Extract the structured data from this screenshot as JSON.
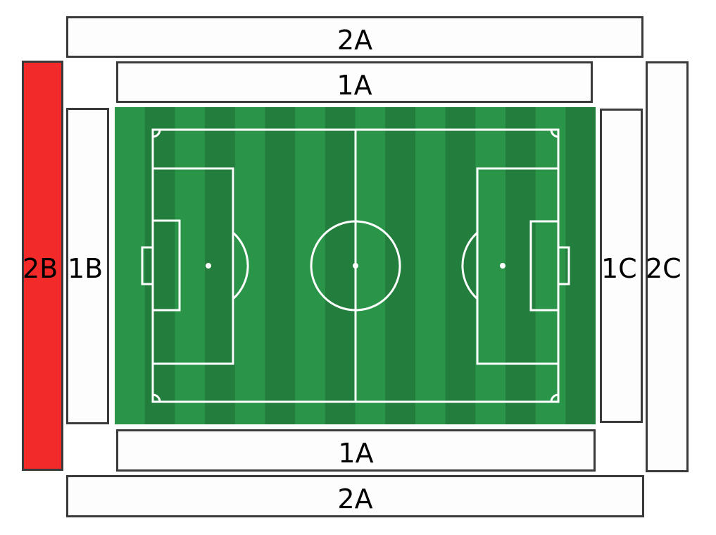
{
  "colors": {
    "selected_section": "#f22a2a",
    "section_fill": "#fdfdfd",
    "section_border": "#3a3a3a",
    "pitch_light": "#2a9548",
    "pitch_dark": "#237d3c",
    "pitch_lines": "#ffffff"
  },
  "selected_section": "2B",
  "sections": {
    "top_outer": "2A",
    "top_inner": "1A",
    "bottom_inner": "1A",
    "bottom_outer": "2A",
    "left_outer": "2B",
    "left_inner": "1B",
    "right_inner": "1C",
    "right_outer": "2C"
  }
}
